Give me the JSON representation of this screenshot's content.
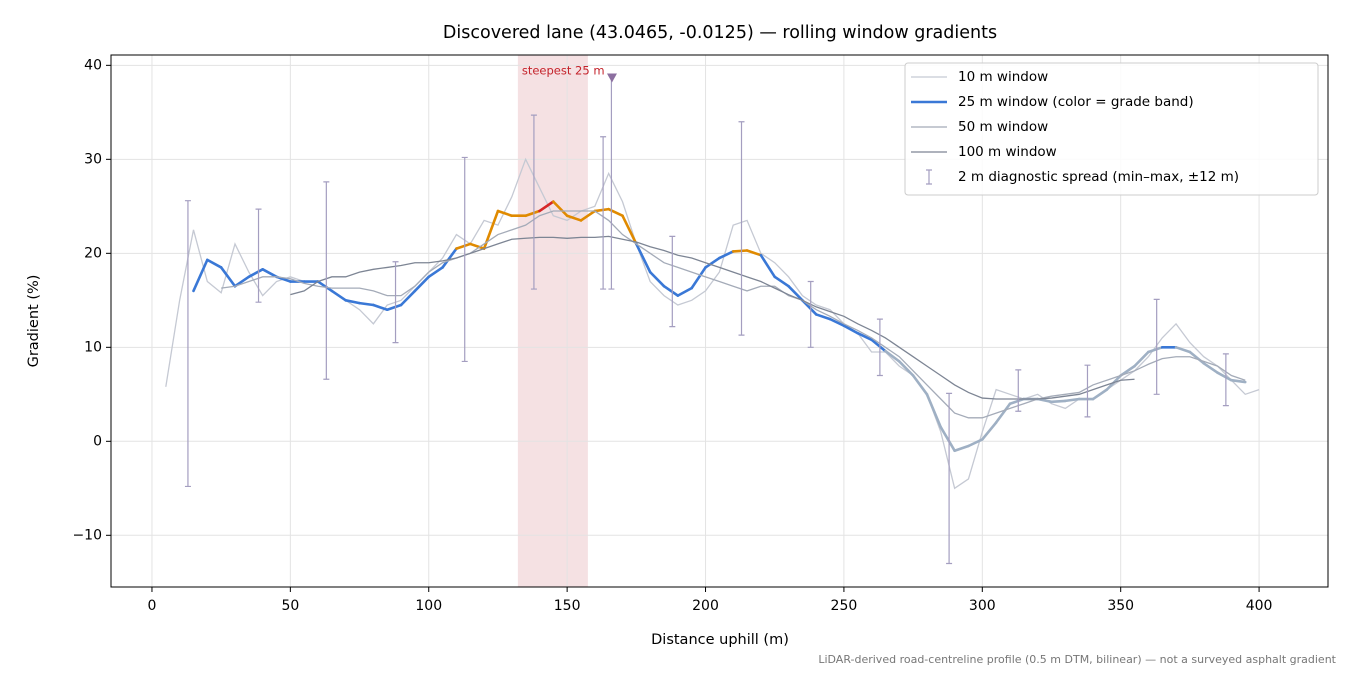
{
  "chart_data": {
    "type": "line",
    "title": "Discovered lane (43.0465, -0.0125) — rolling window gradients",
    "xlabel": "Distance uphill (m)",
    "ylabel": "Gradient (%)",
    "footnote": "LiDAR-derived road-centreline profile (0.5 m DTM, bilinear) — not a surveyed asphalt gradient",
    "xlim": [
      -14.8,
      424.9
    ],
    "ylim": [
      -15.5,
      41.1
    ],
    "xticks": [
      0,
      50,
      100,
      150,
      200,
      250,
      300,
      350,
      400
    ],
    "yticks": [
      {
        "value": -10,
        "label": "−10"
      },
      0,
      10,
      20,
      30,
      40
    ],
    "grid": true,
    "legend": "upper right",
    "x": [
      5,
      10,
      15,
      20,
      25,
      30,
      35,
      40,
      45,
      50,
      55,
      60,
      65,
      70,
      75,
      80,
      85,
      90,
      95,
      100,
      105,
      110,
      115,
      120,
      125,
      130,
      135,
      140,
      145,
      150,
      155,
      160,
      165,
      170,
      175,
      180,
      185,
      190,
      195,
      200,
      205,
      210,
      215,
      220,
      225,
      230,
      235,
      240,
      245,
      250,
      255,
      260,
      265,
      270,
      275,
      280,
      285,
      290,
      295,
      300,
      305,
      310,
      315,
      320,
      325,
      330,
      335,
      340,
      345,
      350,
      355,
      360,
      365,
      370,
      375,
      380,
      385,
      390,
      395,
      400,
      405
    ],
    "series": [
      {
        "name": "10 m window",
        "color": "#c5c9d3",
        "width": 1.3,
        "values": [
          5.8,
          15,
          22.5,
          17,
          15.8,
          21,
          18,
          15.5,
          17,
          17.5,
          17,
          17,
          16,
          15,
          14,
          12.5,
          14.5,
          15,
          16.5,
          18,
          19.5,
          22,
          21,
          23.5,
          23,
          26,
          30,
          27,
          24,
          23.5,
          24.5,
          25,
          28.5,
          25.5,
          21,
          17,
          15.5,
          14.5,
          15,
          16,
          18,
          23,
          23.5,
          20,
          19,
          17.5,
          15.5,
          14.5,
          14,
          12.5,
          11.5,
          9.5,
          9.5,
          8,
          7,
          5,
          1,
          -5,
          -4,
          1,
          5.5,
          5,
          4.5,
          5,
          4,
          3.5,
          4.5,
          4.5,
          5.5,
          6.5,
          7.5,
          9,
          11,
          12.5,
          10.5,
          9,
          8,
          6.5,
          5,
          5.5,
          null
        ]
      },
      {
        "name": "25 m window (color = grade band)",
        "width": 2.6,
        "grade_bands": [
          {
            "below": 10,
            "color": "#9fb0c4"
          },
          {
            "below": 20,
            "color": "#3a78d6"
          },
          {
            "below": 25,
            "color": "#e08a00"
          },
          {
            "color": "#d62728"
          }
        ],
        "values": [
          null,
          null,
          16,
          19.3,
          18.5,
          16.5,
          17.5,
          18.3,
          17.5,
          17,
          17,
          17,
          16,
          15,
          14.7,
          14.5,
          14,
          14.5,
          16,
          17.5,
          18.5,
          20.5,
          21,
          20.5,
          24.5,
          24,
          24,
          24.5,
          25.5,
          24,
          23.5,
          24.5,
          24.7,
          24,
          21,
          18,
          16.5,
          15.5,
          16.3,
          18.5,
          19.5,
          20.2,
          20.3,
          19.8,
          17.5,
          16.5,
          15,
          13.5,
          13,
          12.3,
          11.5,
          10.8,
          9.6,
          8.5,
          7,
          5,
          1.5,
          -1,
          -0.5,
          0.2,
          2,
          4,
          4.5,
          4.5,
          4.2,
          4.3,
          4.5,
          4.5,
          5.5,
          7,
          8,
          9.5,
          10,
          10,
          9.5,
          8.3,
          7.3,
          6.5,
          6.3,
          null,
          null
        ]
      },
      {
        "name": "50 m window",
        "color": "#a4abb8",
        "width": 1.3,
        "values": [
          null,
          null,
          null,
          null,
          16.3,
          16.5,
          17,
          17.5,
          17.5,
          17.3,
          16.8,
          16.5,
          16.3,
          16.3,
          16.3,
          16,
          15.5,
          15.5,
          16.5,
          18,
          19,
          19.5,
          20,
          21,
          22,
          22.5,
          23,
          24,
          24.5,
          24.5,
          24.5,
          24.5,
          23.5,
          22,
          21,
          20,
          19,
          18.5,
          18,
          17.5,
          17,
          16.5,
          16,
          16.5,
          16.5,
          15.5,
          15,
          14,
          13.3,
          12.5,
          11.8,
          11,
          10,
          9,
          7.5,
          6,
          4.5,
          3,
          2.5,
          2.5,
          3,
          3.5,
          4,
          4.5,
          4.8,
          5,
          5.2,
          6,
          6.5,
          7,
          7.5,
          8.2,
          8.8,
          9,
          9,
          8.5,
          8,
          7,
          6.5,
          null,
          null
        ]
      },
      {
        "name": "100 m window",
        "color": "#7d8594",
        "width": 1.3,
        "values": [
          null,
          null,
          null,
          null,
          null,
          null,
          null,
          null,
          null,
          15.6,
          16,
          17,
          17.5,
          17.5,
          18,
          18.3,
          18.5,
          18.7,
          19,
          19,
          19.2,
          19.5,
          20,
          20.5,
          21,
          21.5,
          21.6,
          21.7,
          21.7,
          21.6,
          21.7,
          21.7,
          21.8,
          21.5,
          21.2,
          20.7,
          20.3,
          19.8,
          19.5,
          19,
          18.5,
          18,
          17.5,
          17,
          16.3,
          15.6,
          15,
          14.3,
          13.8,
          13.3,
          12.5,
          11.8,
          11,
          10,
          9,
          8,
          7,
          6,
          5.2,
          4.6,
          4.5,
          4.5,
          4.5,
          4.5,
          4.6,
          4.8,
          5,
          5.5,
          6,
          6.5,
          6.6,
          null,
          null,
          null,
          null,
          null,
          null,
          null,
          null,
          null,
          null
        ]
      }
    ],
    "errorbars": {
      "name": "2 m diagnostic spread (min–max, ±12 m)",
      "color": "#a49ec0",
      "x": [
        13,
        38.5,
        63,
        88,
        113,
        138,
        163,
        166,
        188,
        213,
        238,
        263,
        288,
        313,
        338,
        363,
        388
      ],
      "low": [
        -4.8,
        14.8,
        6.6,
        10.5,
        8.5,
        16.2,
        16.2,
        16.2,
        12.2,
        11.3,
        10,
        7,
        -13,
        3.2,
        2.6,
        5,
        3.8
      ],
      "high": [
        25.6,
        24.7,
        27.6,
        19.1,
        30.2,
        34.7,
        32.4,
        38.9,
        21.8,
        34,
        17,
        13,
        5.1,
        7.6,
        8.1,
        15.1,
        9.3
      ]
    },
    "highlight": {
      "label": "steepest 25 m",
      "span": [
        132.2,
        157.5
      ],
      "color": "#e7b4ba",
      "marker": {
        "x": 166.2,
        "y": 38.7,
        "color": "#8c6fa0"
      }
    }
  }
}
